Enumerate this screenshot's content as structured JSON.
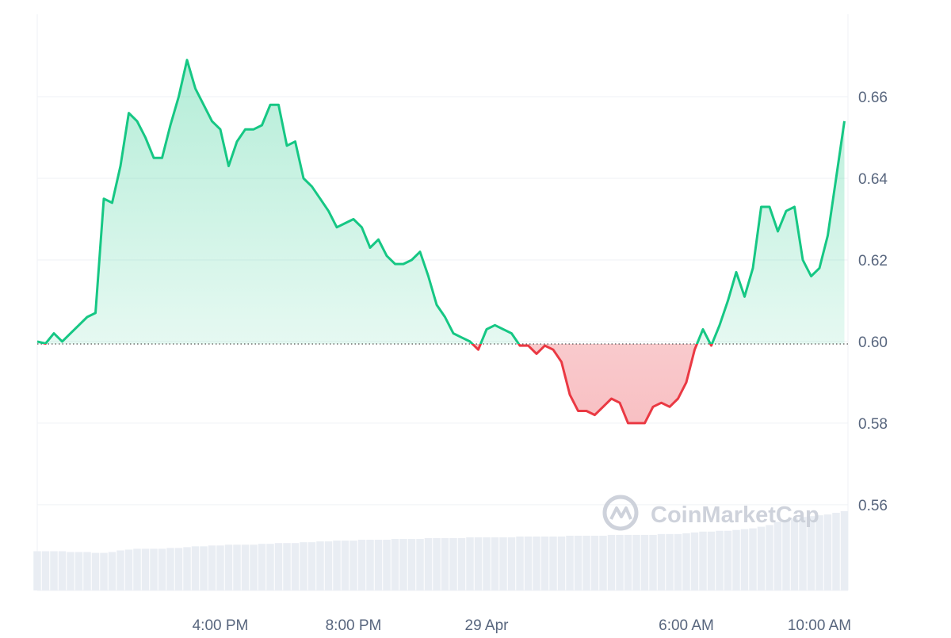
{
  "chart_data": {
    "type": "line",
    "watermark": "CoinMarketCap",
    "categories": [
      null,
      null,
      null,
      null,
      null,
      null,
      null,
      null,
      null,
      null,
      null,
      null,
      null,
      null,
      null,
      null,
      null,
      null,
      null,
      null,
      null,
      null,
      "4:00 PM",
      null,
      null,
      null,
      null,
      null,
      null,
      null,
      null,
      null,
      null,
      null,
      null,
      null,
      null,
      null,
      "8:00 PM",
      null,
      null,
      null,
      null,
      null,
      null,
      null,
      null,
      null,
      null,
      null,
      null,
      null,
      null,
      null,
      "29 Apr",
      null,
      null,
      null,
      null,
      null,
      null,
      null,
      null,
      null,
      null,
      null,
      null,
      null,
      null,
      null,
      null,
      null,
      null,
      null,
      null,
      null,
      null,
      null,
      "6:00 AM",
      null,
      null,
      null,
      null,
      null,
      null,
      null,
      null,
      null,
      null,
      null,
      null,
      null,
      null,
      null,
      "10:00 AM",
      null,
      null,
      null
    ],
    "values": [
      0.6,
      0.5995,
      0.602,
      0.6,
      0.602,
      0.604,
      0.606,
      0.607,
      0.635,
      0.634,
      0.643,
      0.656,
      0.654,
      0.65,
      0.645,
      0.645,
      0.653,
      0.66,
      0.669,
      0.662,
      0.658,
      0.654,
      0.652,
      0.643,
      0.649,
      0.652,
      0.652,
      0.653,
      0.658,
      0.658,
      0.648,
      0.649,
      0.64,
      0.638,
      0.635,
      0.632,
      0.628,
      0.629,
      0.63,
      0.628,
      0.623,
      0.625,
      0.621,
      0.619,
      0.619,
      0.62,
      0.622,
      0.616,
      0.609,
      0.606,
      0.602,
      0.601,
      0.6,
      0.598,
      0.603,
      0.604,
      0.603,
      0.602,
      0.599,
      0.599,
      0.597,
      0.599,
      0.598,
      0.595,
      0.587,
      0.583,
      0.583,
      0.582,
      0.584,
      0.586,
      0.585,
      0.58,
      0.58,
      0.58,
      0.584,
      0.585,
      0.584,
      0.586,
      0.59,
      0.598,
      0.603,
      0.599,
      0.604,
      0.61,
      0.617,
      0.611,
      0.618,
      0.633,
      0.633,
      0.627,
      0.632,
      0.633,
      0.62,
      0.616,
      0.618,
      0.626,
      0.64,
      0.654
    ],
    "baseline": 0.5994,
    "up_color": "#16c784",
    "down_color": "#ea3943",
    "volume": [
      48,
      48,
      48,
      48,
      47,
      47,
      47,
      46,
      46,
      47,
      49,
      50,
      51,
      51,
      51,
      51,
      52,
      52,
      53,
      54,
      54,
      55,
      55,
      56,
      56,
      56,
      56,
      57,
      57,
      58,
      58,
      58,
      59,
      59,
      60,
      60,
      61,
      61,
      61,
      62,
      62,
      62,
      62,
      63,
      63,
      63,
      63,
      64,
      64,
      64,
      64,
      64,
      65,
      65,
      65,
      65,
      65,
      65,
      66,
      66,
      66,
      66,
      66,
      66,
      67,
      67,
      67,
      67,
      67,
      68,
      68,
      68,
      68,
      68,
      68,
      69,
      69,
      69,
      70,
      71,
      72,
      72,
      73,
      73,
      74,
      75,
      76,
      78,
      80,
      84,
      86,
      88,
      90,
      91,
      92,
      93,
      95,
      97
    ],
    "volume_color": "#e9edf3",
    "ylim": [
      0.539,
      0.6802
    ],
    "yticks": [
      0.56,
      0.58,
      {
        "value": 0.6,
        "label": "0.60"
      },
      0.62,
      0.64,
      0.66
    ],
    "grid": true
  }
}
